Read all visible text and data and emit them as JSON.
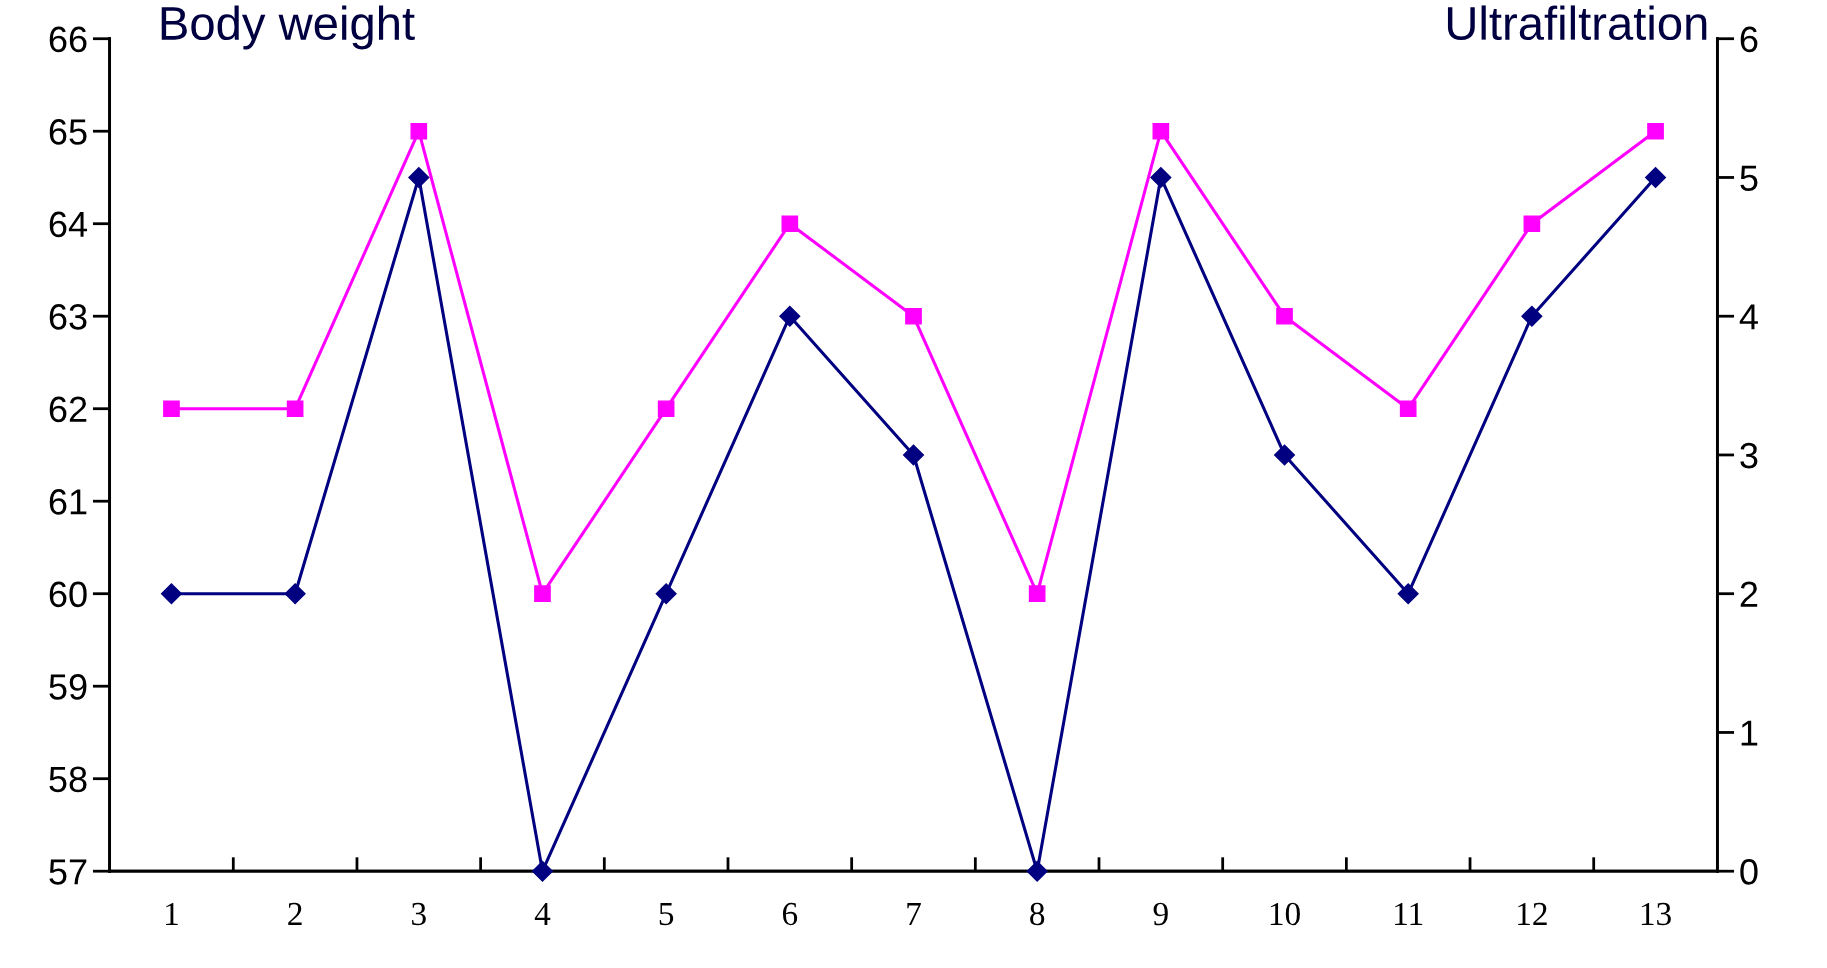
{
  "chart_data": {
    "type": "line",
    "ylabel": "Body weight",
    "y2label": "Ultrafiltration",
    "categories": [
      "1",
      "2",
      "3",
      "4",
      "5",
      "6",
      "7",
      "8",
      "9",
      "10",
      "11",
      "12",
      "13"
    ],
    "series": [
      {
        "name": null,
        "color": "#ff00ff",
        "marker": "square",
        "values": [
          62,
          62,
          65,
          60,
          62,
          64,
          63,
          60,
          65,
          63,
          62,
          64,
          65
        ]
      },
      {
        "name": null,
        "color": "#000080",
        "marker": "diamond",
        "axis": "y2",
        "values": [
          2,
          2,
          5,
          0,
          2,
          4,
          3,
          0,
          5,
          3,
          2,
          4,
          5
        ]
      }
    ],
    "ylim": [
      57,
      66
    ],
    "yticks": [
      57,
      58,
      59,
      60,
      61,
      62,
      63,
      64,
      65,
      66
    ],
    "y2lim": [
      0,
      6
    ],
    "y2ticks": [
      0,
      1,
      2,
      3,
      4,
      5,
      6
    ],
    "grid": false,
    "line_style": "solid"
  }
}
